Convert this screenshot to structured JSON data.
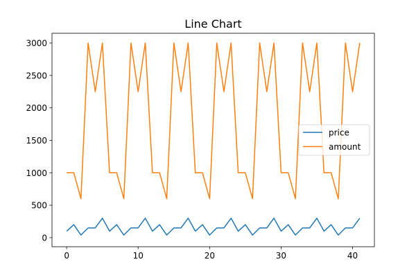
{
  "chart_data": {
    "type": "line",
    "title": "Line Chart",
    "xlabel": "",
    "ylabel": "",
    "x": [
      0,
      1,
      2,
      3,
      4,
      5,
      6,
      7,
      8,
      9,
      10,
      11,
      12,
      13,
      14,
      15,
      16,
      17,
      18,
      19,
      20,
      21,
      22,
      23,
      24,
      25,
      26,
      27,
      28,
      29,
      30,
      31,
      32,
      33,
      34,
      35,
      36,
      37,
      38,
      39,
      40,
      41
    ],
    "xlim": [
      -2.05,
      43.05
    ],
    "ylim": [
      -140,
      3150
    ],
    "xticks": [
      0,
      10,
      20,
      30,
      40
    ],
    "xtick_labels": [
      "0",
      "10",
      "20",
      "30",
      "40"
    ],
    "yticks": [
      0,
      500,
      1000,
      1500,
      2000,
      2500,
      3000
    ],
    "ytick_labels": [
      "0",
      "500",
      "1000",
      "1500",
      "2000",
      "2500",
      "3000"
    ],
    "grid": false,
    "legend_position": "center-right",
    "series": [
      {
        "name": "price",
        "color": "#1f77b4",
        "values": [
          100,
          200,
          40,
          150,
          150,
          300,
          100,
          200,
          40,
          150,
          150,
          300,
          100,
          200,
          40,
          150,
          150,
          300,
          100,
          200,
          40,
          150,
          150,
          300,
          100,
          200,
          40,
          150,
          150,
          300,
          100,
          200,
          40,
          150,
          150,
          300,
          100,
          200,
          40,
          150,
          150,
          300
        ]
      },
      {
        "name": "amount",
        "color": "#ff7f0e",
        "values": [
          1000,
          1000,
          600,
          3000,
          2250,
          3000,
          1000,
          1000,
          600,
          3000,
          2250,
          3000,
          1000,
          1000,
          600,
          3000,
          2250,
          3000,
          1000,
          1000,
          600,
          3000,
          2250,
          3000,
          1000,
          1000,
          600,
          3000,
          2250,
          3000,
          1000,
          1000,
          600,
          3000,
          2250,
          3000,
          1000,
          1000,
          600,
          3000,
          2250,
          3000
        ]
      }
    ]
  }
}
